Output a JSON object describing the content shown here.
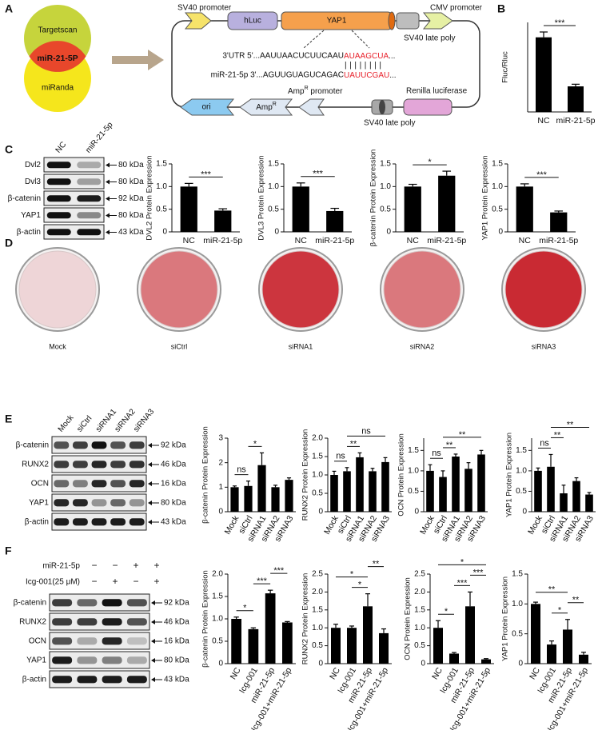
{
  "panels": [
    "A",
    "B",
    "C",
    "D",
    "E",
    "F"
  ],
  "venn": {
    "top": "Targetscan",
    "overlap": "miR-21-5P",
    "bottom": "miRanda"
  },
  "plasmid": {
    "sv40_promoter": "SV40 promoter",
    "hluc": "hLuc",
    "yap1": "YAP1",
    "cmv_promoter": "CMV promoter",
    "late_poly_top": "SV40 late poly",
    "late_poly_bottom": "SV40 late poly",
    "utr": {
      "prefix": "3'UTR 5'...AAUUAACUCUUCAAU",
      "site": "AUAAGCUA",
      "suffix": "..."
    },
    "pairing": "||||||||",
    "mirna": {
      "prefix": "miR-21-5p 3'...AGUUGUAGUCAGAC",
      "site": "UAUUCGAU",
      "suffix": "..."
    },
    "ori": "ori",
    "ampr": {
      "text": "Amp",
      "sup": "R"
    },
    "amp_promoter": {
      "text": "Amp",
      "sup": "R",
      "rest": " promoter"
    },
    "renilla": "Renilla luciferase"
  },
  "blots": [
    {
      "lanes": [
        "NC",
        "miR-21-5p"
      ],
      "rows": [
        {
          "name": "Dvl2",
          "size": "80 kDa"
        },
        {
          "name": "Dvl3",
          "size": "80 kDa"
        },
        {
          "name": "β-catenin",
          "size": "92 kDa"
        },
        {
          "name": "YAP1",
          "size": "80 kDa"
        },
        {
          "name": "β-actin",
          "size": "43 kDa"
        }
      ]
    },
    {
      "lanes": [
        "Mock",
        "siCtrl",
        "siRNA1",
        "siRNA2",
        "siRNA3"
      ],
      "rows": [
        {
          "name": "β-catenin",
          "size": "92 kDa"
        },
        {
          "name": "RUNX2",
          "size": "46 kDa"
        },
        {
          "name": "OCN",
          "size": "16 kDa"
        },
        {
          "name": "YAP1",
          "size": "80 kDa"
        },
        {
          "name": "β-actin",
          "size": "43 kDa"
        }
      ]
    },
    {
      "conditions": [
        {
          "name": "miR-21-5p",
          "signs": [
            "−",
            "−",
            "+",
            "+"
          ]
        },
        {
          "name": "Icg-001(25 μM)",
          "signs": [
            "−",
            "+",
            "−",
            "+"
          ]
        }
      ],
      "rows": [
        {
          "name": "β-catenin",
          "size": "92 kDa"
        },
        {
          "name": "RUNX2",
          "size": "46 kDa"
        },
        {
          "name": "OCN",
          "size": "16 kDa"
        },
        {
          "name": "YAP1",
          "size": "80 kDa"
        },
        {
          "name": "β-actin",
          "size": "43 kDa"
        }
      ]
    }
  ],
  "dishes": [
    "Mock",
    "siCtrl",
    "siRNA1",
    "siRNA2",
    "siRNA3"
  ],
  "chart_data": [
    {
      "type": "bar",
      "ylabel": "Fluc/Rluc",
      "categories": [
        "NC",
        "miR-21-5p"
      ],
      "values": [
        0.35,
        0.12
      ],
      "errors": [
        0.025,
        0.01
      ],
      "color": "#000000",
      "ylim": [
        0,
        0.42
      ],
      "annotations": [
        {
          "label": "***",
          "from": "NC",
          "to": "miR-21-5p"
        }
      ]
    },
    {
      "type": "bar",
      "ylabel": "DVL2 Protein Expression",
      "categories": [
        "NC",
        "miR-21-5p"
      ],
      "values": [
        1.0,
        0.47
      ],
      "errors": [
        0.07,
        0.04
      ],
      "color": "#000000",
      "ylim": [
        0,
        1.5
      ],
      "yticks": [
        0,
        0.5,
        {
          "value": 1,
          "label": "1.0"
        },
        1.5
      ],
      "annotations": [
        {
          "label": "***",
          "from": "NC",
          "to": "miR-21-5p"
        }
      ]
    },
    {
      "type": "bar",
      "ylabel": "DVL3 Protein Expression",
      "categories": [
        "NC",
        "miR-21-5p"
      ],
      "values": [
        1.0,
        0.46
      ],
      "errors": [
        0.08,
        0.06
      ],
      "color": "#000000",
      "ylim": [
        0,
        1.5
      ],
      "yticks": [
        0,
        0.5,
        {
          "value": 1,
          "label": "1.0"
        },
        1.5
      ],
      "annotations": [
        {
          "label": "***",
          "from": "NC",
          "to": "miR-21-5p"
        }
      ]
    },
    {
      "type": "bar",
      "ylabel": "β-catenin Protein Expression",
      "categories": [
        "NC",
        "miR-21-5p"
      ],
      "values": [
        1.0,
        1.24
      ],
      "errors": [
        0.05,
        0.1
      ],
      "color": "#000000",
      "ylim": [
        0,
        1.5
      ],
      "yticks": [
        0,
        0.5,
        {
          "value": 1,
          "label": "1.0"
        },
        1.5
      ],
      "annotations": [
        {
          "label": "*",
          "from": "NC",
          "to": "miR-21-5p"
        }
      ]
    },
    {
      "type": "bar",
      "ylabel": "YAP1 Protein Expression",
      "categories": [
        "NC",
        "miR-21-5p"
      ],
      "values": [
        1.0,
        0.43
      ],
      "errors": [
        0.06,
        0.03
      ],
      "color": "#000000",
      "ylim": [
        0,
        1.5
      ],
      "yticks": [
        0,
        0.5,
        {
          "value": 1,
          "label": "1.0"
        },
        1.5
      ],
      "annotations": [
        {
          "label": "***",
          "from": "NC",
          "to": "miR-21-5p"
        }
      ]
    },
    {
      "type": "bar",
      "ylabel": "β-catenin Protein Expression",
      "categories": [
        "Mock",
        "siCtrl",
        "siRNA1",
        "siRNA2",
        "siRNA3"
      ],
      "values": [
        1.0,
        1.05,
        1.9,
        1.0,
        1.3
      ],
      "errors": [
        0.05,
        0.2,
        0.5,
        0.08,
        0.08
      ],
      "color": "#000000",
      "ylim": [
        0,
        3
      ],
      "yticks": [
        0,
        1,
        2,
        3
      ],
      "annotations": [
        {
          "label": "ns",
          "from": "Mock",
          "to": "siCtrl"
        },
        {
          "label": "*",
          "from": "siCtrl",
          "to": "siRNA1"
        }
      ]
    },
    {
      "type": "bar",
      "ylabel": "RUNX2 Protein Expression",
      "categories": [
        "Mock",
        "siCtrl",
        "siRNA1",
        "siRNA2",
        "siRNA3"
      ],
      "values": [
        1.0,
        1.1,
        1.48,
        1.1,
        1.35
      ],
      "errors": [
        0.1,
        0.1,
        0.12,
        0.08,
        0.12
      ],
      "color": "#000000",
      "ylim": [
        0,
        2
      ],
      "yticks": [
        0,
        0.5,
        {
          "value": 1,
          "label": "1.0"
        },
        1.5,
        {
          "value": 2,
          "label": "2.0"
        }
      ],
      "annotations": [
        {
          "label": "ns",
          "from": "Mock",
          "to": "siCtrl"
        },
        {
          "label": "**",
          "from": "siCtrl",
          "to": "siRNA1"
        },
        {
          "label": "ns",
          "from": "siCtrl",
          "to": "siRNA3"
        }
      ]
    },
    {
      "type": "bar",
      "ylabel": "OCN Protein Expression",
      "categories": [
        "Mock",
        "siCtrl",
        "siRNA1",
        "siRNA2",
        "siRNA3"
      ],
      "values": [
        1.0,
        0.85,
        1.35,
        1.05,
        1.4
      ],
      "errors": [
        0.15,
        0.15,
        0.06,
        0.15,
        0.1
      ],
      "color": "#000000",
      "ylim": [
        0,
        1.8
      ],
      "yticks": [
        0,
        0.5,
        {
          "value": 1,
          "label": "1.0"
        },
        1.5
      ],
      "annotations": [
        {
          "label": "ns",
          "from": "Mock",
          "to": "siCtrl"
        },
        {
          "label": "**",
          "from": "siCtrl",
          "to": "siRNA1"
        },
        {
          "label": "**",
          "from": "siCtrl",
          "to": "siRNA3"
        }
      ]
    },
    {
      "type": "bar",
      "ylabel": "YAP1 Protein Expression",
      "categories": [
        "Mock",
        "siCtrl",
        "siRNA1",
        "siRNA2",
        "siRNA3"
      ],
      "values": [
        1.0,
        1.1,
        0.45,
        0.75,
        0.42
      ],
      "errors": [
        0.07,
        0.3,
        0.2,
        0.08,
        0.05
      ],
      "color": "#000000",
      "ylim": [
        0,
        1.8
      ],
      "yticks": [
        0,
        0.5,
        {
          "value": 1,
          "label": "1.0"
        },
        1.5
      ],
      "annotations": [
        {
          "label": "ns",
          "from": "Mock",
          "to": "siCtrl"
        },
        {
          "label": "**",
          "from": "siCtrl",
          "to": "siRNA1"
        },
        {
          "label": "**",
          "from": "siCtrl",
          "to": "siRNA3"
        }
      ]
    },
    {
      "type": "bar",
      "ylabel": "β-catenin Protein Expression",
      "categories": [
        "NC",
        "Icg-001",
        "miR-21-5p",
        "Icg-001+miR-21-5p"
      ],
      "values": [
        1.0,
        0.77,
        1.57,
        0.92
      ],
      "errors": [
        0.04,
        0.03,
        0.07,
        0.02
      ],
      "color": "#000000",
      "ylim": [
        0,
        2
      ],
      "yticks": [
        0,
        0.5,
        {
          "value": 1,
          "label": "1.0"
        },
        1.5,
        {
          "value": 2,
          "label": "2.0"
        }
      ],
      "annotations": [
        {
          "label": "*",
          "from": "NC",
          "to": "Icg-001"
        },
        {
          "label": "***",
          "from": "Icg-001",
          "to": "miR-21-5p"
        },
        {
          "label": "***",
          "from": "miR-21-5p",
          "to": "Icg-001+miR-21-5p"
        }
      ]
    },
    {
      "type": "bar",
      "ylabel": "RUNX2 Protein Expression",
      "categories": [
        "NC",
        "Icg-001",
        "miR-21-5p",
        "Icg-001+miR-21-5p"
      ],
      "values": [
        1.0,
        1.0,
        1.6,
        0.85
      ],
      "errors": [
        0.1,
        0.05,
        0.35,
        0.12
      ],
      "color": "#000000",
      "ylim": [
        0,
        2.5
      ],
      "yticks": [
        0,
        0.5,
        {
          "value": 1,
          "label": "1.0"
        },
        1.5,
        {
          "value": 2,
          "label": "2.0"
        },
        2.5
      ],
      "annotations": [
        {
          "label": "*",
          "from": "Icg-001",
          "to": "miR-21-5p"
        },
        {
          "label": "*",
          "from": "NC",
          "to": "miR-21-5p"
        },
        {
          "label": "**",
          "from": "miR-21-5p",
          "to": "Icg-001+miR-21-5p"
        }
      ]
    },
    {
      "type": "bar",
      "ylabel": "OCN Protein Expression",
      "categories": [
        "NC",
        "Icg-001",
        "miR-21-5p",
        "Icg-001+miR-21-5p"
      ],
      "values": [
        1.0,
        0.28,
        1.6,
        0.12
      ],
      "errors": [
        0.2,
        0.03,
        0.4,
        0.02
      ],
      "color": "#000000",
      "ylim": [
        0,
        2.5
      ],
      "yticks": [
        0,
        0.5,
        {
          "value": 1,
          "label": "1.0"
        },
        1.5,
        {
          "value": 2,
          "label": "2.0"
        },
        2.5
      ],
      "annotations": [
        {
          "label": "*",
          "from": "NC",
          "to": "Icg-001"
        },
        {
          "label": "***",
          "from": "Icg-001",
          "to": "miR-21-5p"
        },
        {
          "label": "***",
          "from": "miR-21-5p",
          "to": "Icg-001+miR-21-5p"
        },
        {
          "label": "*",
          "from": "NC",
          "to": "Icg-001+miR-21-5p"
        }
      ]
    },
    {
      "type": "bar",
      "ylabel": "YAP1 Protein Expression",
      "categories": [
        "NC",
        "Icg-001",
        "miR-21-5p",
        "Icg-001+miR-21-5p"
      ],
      "values": [
        1.0,
        0.32,
        0.57,
        0.15
      ],
      "errors": [
        0.03,
        0.06,
        0.17,
        0.04
      ],
      "color": "#000000",
      "ylim": [
        0,
        1.5
      ],
      "yticks": [
        0,
        0.5,
        {
          "value": 1,
          "label": "1.0"
        },
        1.5
      ],
      "annotations": [
        {
          "label": "*",
          "from": "Icg-001",
          "to": "miR-21-5p"
        },
        {
          "label": "**",
          "from": "miR-21-5p",
          "to": "Icg-001+miR-21-5p"
        },
        {
          "label": "**",
          "from": "NC",
          "to": "miR-21-5p"
        }
      ]
    }
  ]
}
